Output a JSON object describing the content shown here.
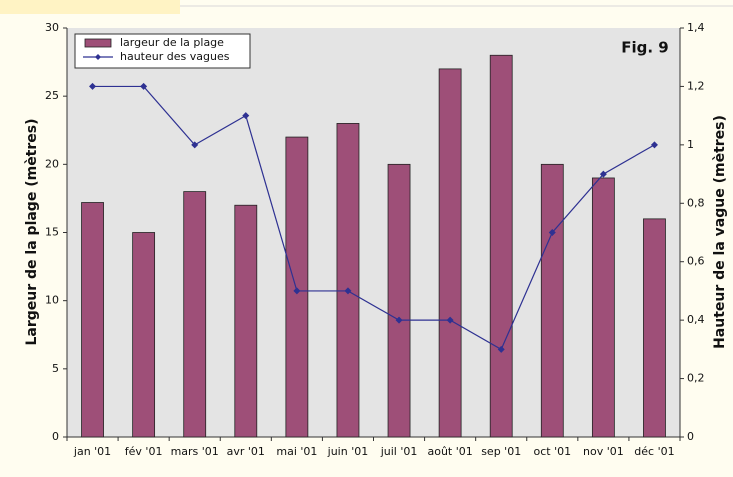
{
  "chart_data": {
    "type": "bar",
    "annotation": "Fig. 9",
    "ylabel": "Largeur de la plage (mètres)",
    "y2label": "Hauteur de la vague (mètres)",
    "categories": [
      "jan '01",
      "fév '01",
      "mars '01",
      "avr '01",
      "mai '01",
      "juin '01",
      "juil '01",
      "août '01",
      "sep '01",
      "oct '01",
      "nov '01",
      "déc '01"
    ],
    "series": [
      {
        "name": "largeur de la plage",
        "color": "#9e4f78",
        "values": [
          17.2,
          15,
          18,
          17,
          22,
          23,
          20,
          27,
          28,
          20,
          19,
          16
        ]
      },
      {
        "name": "hauteur des vagues",
        "color": "#2e3192",
        "type": "line",
        "axis": "y2",
        "values": [
          1.2,
          1.2,
          1.0,
          1.1,
          0.5,
          0.5,
          0.4,
          0.4,
          0.3,
          0.7,
          0.9,
          1.0
        ]
      }
    ],
    "ylim": [
      0,
      30
    ],
    "yticks": [
      0,
      5,
      10,
      15,
      20,
      25,
      30
    ],
    "y2lim": [
      0,
      1.4
    ],
    "y2ticks": [
      0,
      {
        "value": 0.2,
        "label": "0,2"
      },
      {
        "value": 0.4,
        "label": "0,4"
      },
      {
        "value": 0.6,
        "label": "0,6"
      },
      {
        "value": 0.8,
        "label": "0,8"
      },
      {
        "value": 1,
        "label": "1"
      },
      {
        "value": 1.2,
        "label": "1,2"
      },
      {
        "value": 1.4,
        "label": "1,4"
      }
    ],
    "grid": false,
    "legend": "upper-left"
  }
}
